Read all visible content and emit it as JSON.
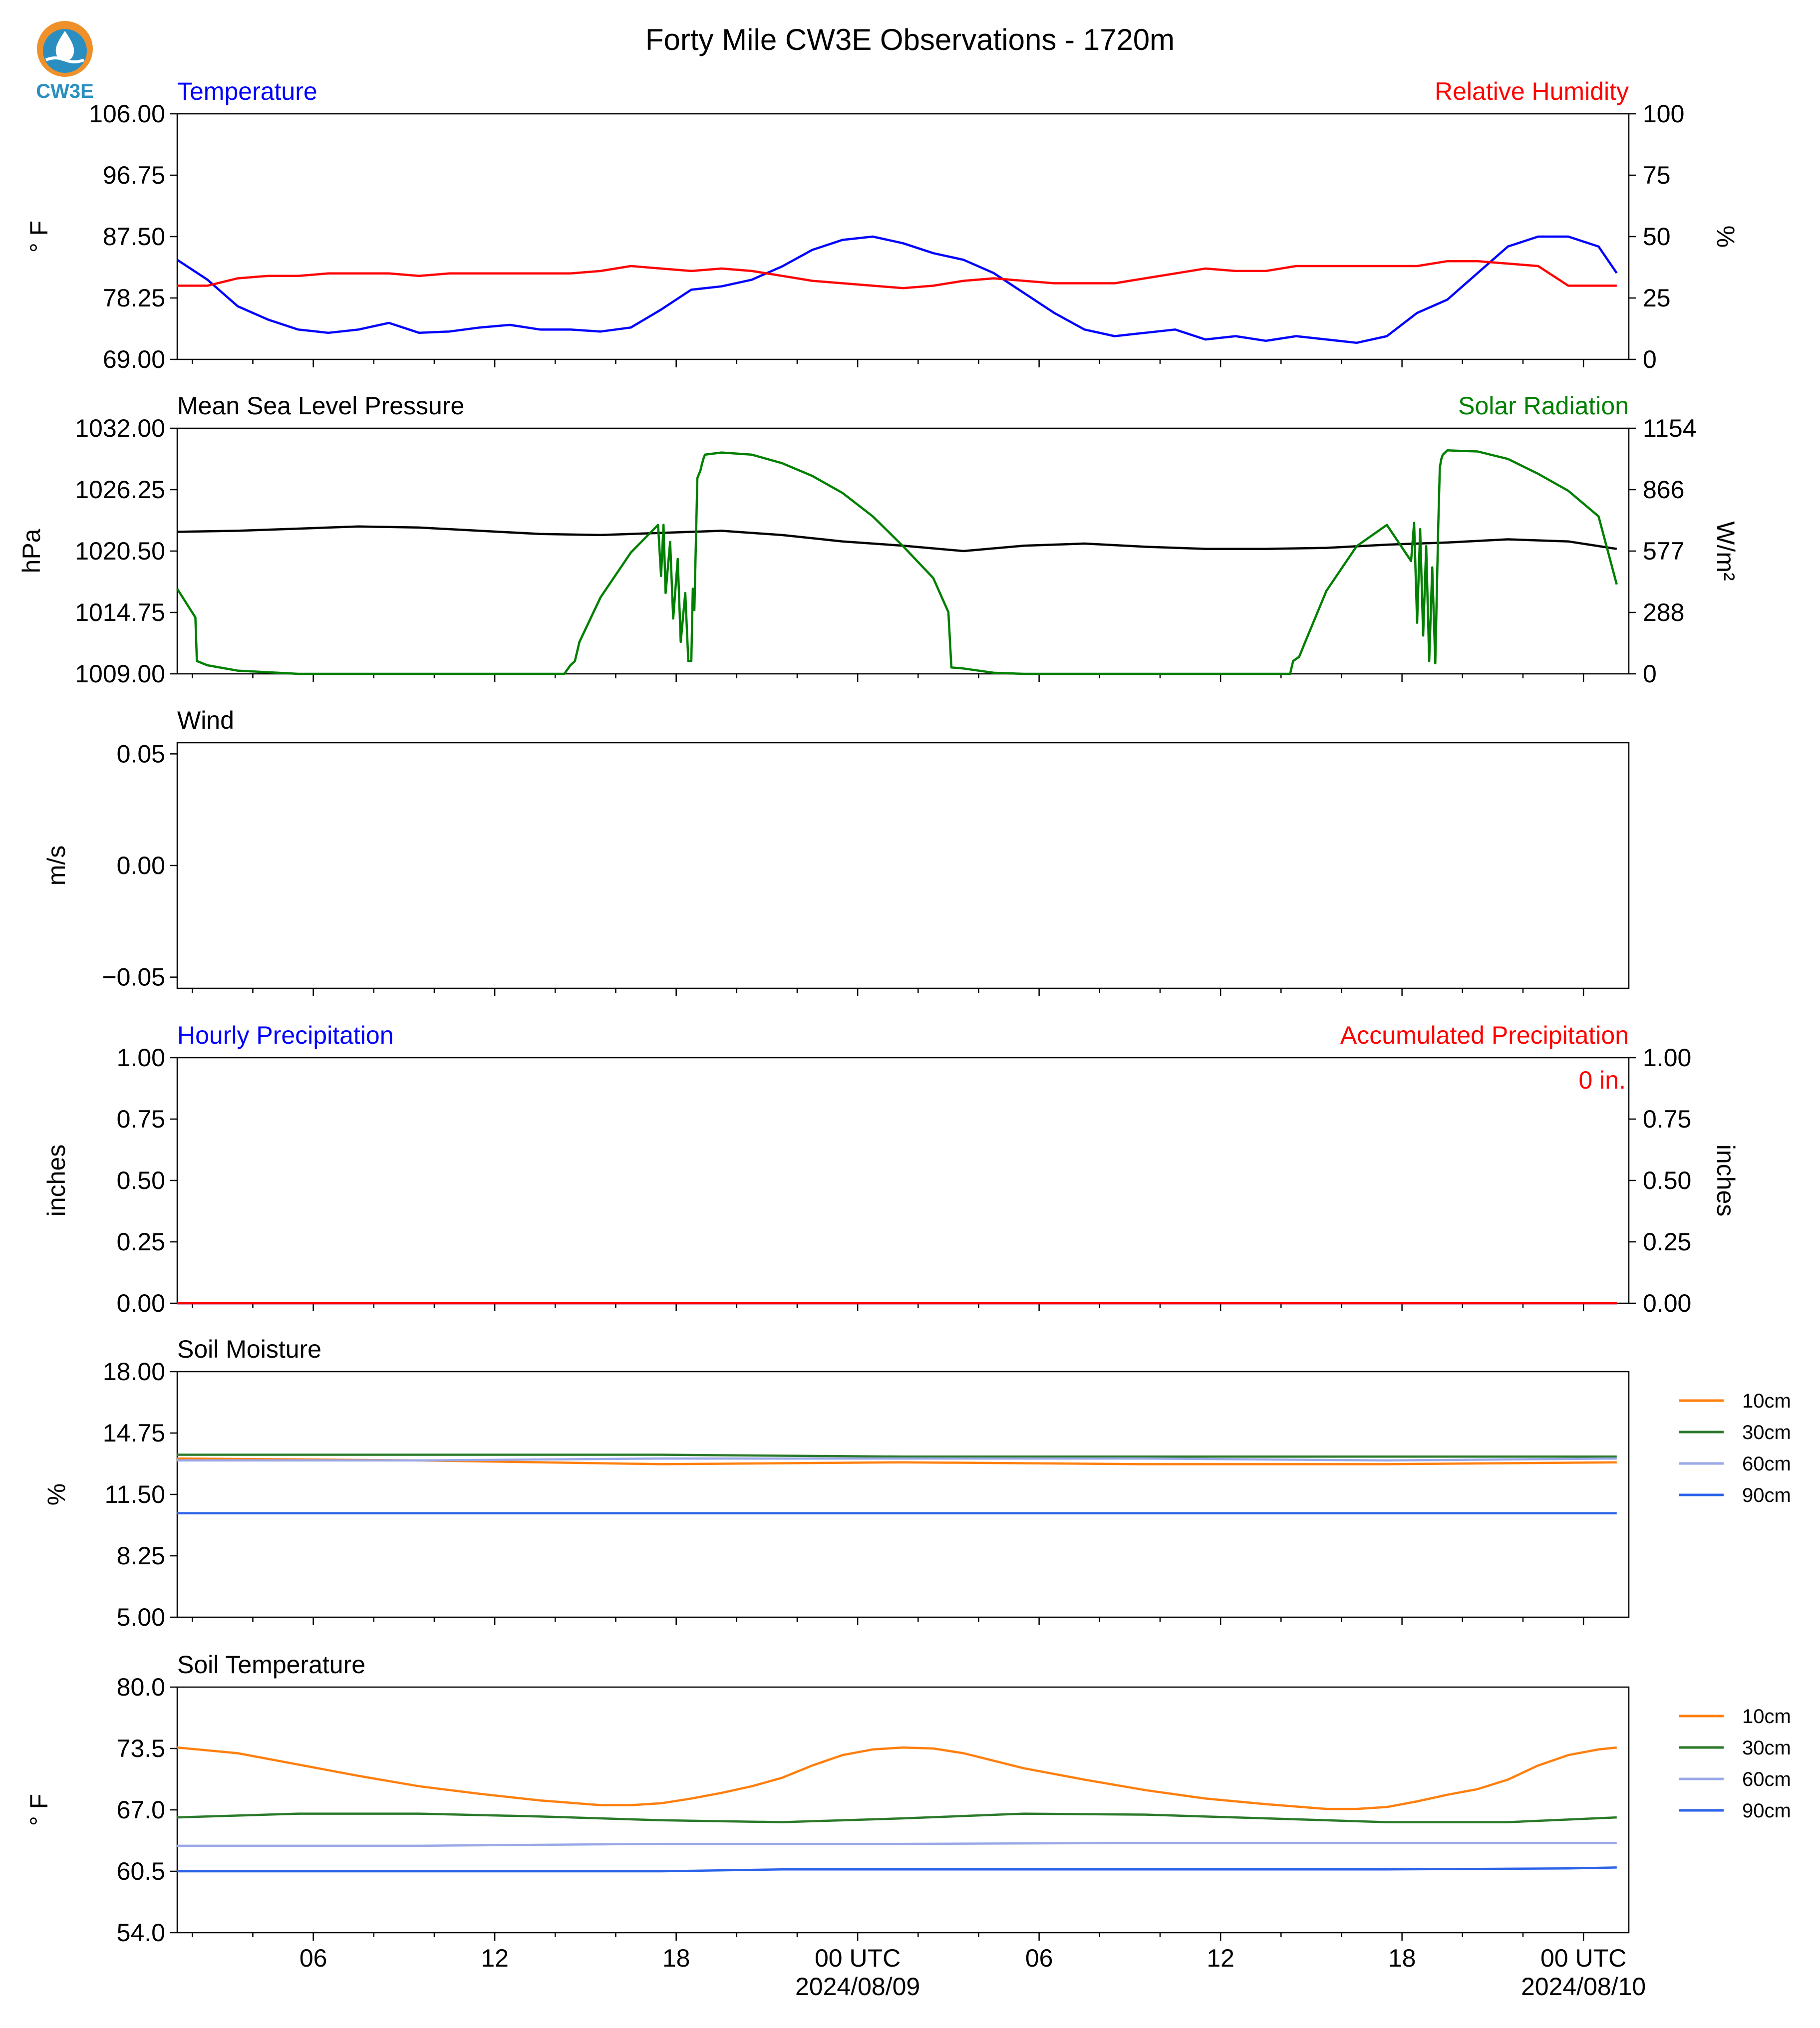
{
  "title": "Forty Mile CW3E Observations - 1720m",
  "logo": {
    "text": "CW3E",
    "icon": "water-drop-logo-icon",
    "colors": {
      "orange": "#f0902a",
      "blue": "#2a8fc0"
    }
  },
  "colors": {
    "blue": "#0000ff",
    "red": "#ff0000",
    "green": "#008000",
    "black": "#000000",
    "orange": "#ff7f0e",
    "dark_green": "#2a7a2a",
    "light_blue": "#9aa8e8",
    "mid_blue": "#2a62e8"
  },
  "chart_data": [
    {
      "panel": "temperature-humidity",
      "type": "line",
      "title_left": "Temperature",
      "title_right": "Relative Humidity",
      "ylabel": "° F",
      "ylabel_right": "%",
      "ylim": [
        69.0,
        106.0
      ],
      "ylim_right": [
        0,
        100
      ],
      "yticks": [
        "106.00",
        "96.75",
        "87.50",
        "78.25",
        "69.00"
      ],
      "yticks_right": [
        "100",
        "75",
        "50",
        "25",
        "0"
      ],
      "x_hours": [
        0,
        1,
        2,
        3,
        4,
        5,
        6,
        7,
        8,
        9,
        10,
        11,
        12,
        13,
        14,
        15,
        16,
        17,
        18,
        19,
        20,
        21,
        22,
        23,
        24,
        25,
        26,
        27,
        28,
        29,
        30,
        31,
        32,
        33,
        34,
        35,
        36,
        37,
        38,
        39,
        40,
        41,
        42,
        43,
        44,
        45,
        46,
        47,
        48
      ],
      "series": [
        {
          "name": "Temperature",
          "axis": "left",
          "color": "#0000ff",
          "values": [
            84.0,
            81.0,
            77.0,
            75.0,
            73.5,
            73.0,
            73.5,
            74.5,
            73.0,
            73.2,
            73.8,
            74.2,
            73.5,
            73.5,
            73.2,
            73.8,
            76.5,
            79.5,
            80.0,
            81.0,
            83.0,
            85.5,
            87.0,
            87.5,
            86.5,
            85.0,
            84.0,
            82.0,
            79.0,
            76.0,
            73.5,
            72.5,
            73.0,
            73.5,
            72.0,
            72.5,
            71.8,
            72.5,
            72.0,
            71.5,
            72.5,
            76.0,
            78.0,
            82.0,
            86.0,
            87.5,
            87.5,
            86.0,
            82.0
          ]
        },
        {
          "name": "Relative Humidity",
          "axis": "right",
          "color": "#ff0000",
          "values": [
            30,
            30,
            33,
            34,
            34,
            35,
            35,
            35,
            34,
            35,
            35,
            35,
            35,
            35,
            36,
            38,
            37,
            36,
            37,
            36,
            34,
            32,
            31,
            30,
            29,
            30,
            32,
            33,
            32,
            31,
            31,
            31,
            33,
            35,
            37,
            36,
            36,
            38,
            38,
            38,
            38,
            38,
            40,
            40,
            39,
            38,
            30,
            30,
            30
          ]
        }
      ]
    },
    {
      "panel": "pressure-solar",
      "type": "line",
      "title_left": "Mean Sea Level Pressure",
      "title_right": "Solar Radiation",
      "ylabel": "hPa",
      "ylabel_right": "W/m²",
      "ylim": [
        1009.0,
        1032.0
      ],
      "ylim_right": [
        0,
        1154
      ],
      "yticks": [
        "1032.00",
        "1026.25",
        "1020.50",
        "1014.75",
        "1009.00"
      ],
      "yticks_right": [
        "1154",
        "866",
        "577",
        "288",
        "0"
      ],
      "series": [
        {
          "name": "Mean Sea Level Pressure",
          "axis": "left",
          "color": "#000000",
          "x": [
            0,
            2,
            4,
            5,
            6,
            8,
            10,
            12,
            14,
            16,
            18,
            20,
            22,
            24,
            26,
            28,
            30,
            32,
            34,
            36,
            38,
            40,
            42,
            44,
            46,
            48
          ],
          "values": [
            1022.3,
            1022.4,
            1022.6,
            1022.7,
            1022.8,
            1022.7,
            1022.4,
            1022.1,
            1022.0,
            1022.2,
            1022.4,
            1022.0,
            1021.4,
            1021.0,
            1020.5,
            1021.0,
            1021.2,
            1020.9,
            1020.7,
            1020.7,
            1020.8,
            1021.1,
            1021.3,
            1021.6,
            1021.4,
            1020.7
          ]
        },
        {
          "name": "Solar Radiation",
          "axis": "right",
          "color": "#008000",
          "x": [
            0.0,
            0.6,
            0.65,
            1.0,
            2.0,
            4.0,
            8.0,
            12.0,
            12.8,
            13.0,
            13.15,
            13.3,
            14.0,
            15.0,
            15.9,
            16.0,
            16.08,
            16.15,
            16.3,
            16.4,
            16.55,
            16.65,
            16.8,
            16.9,
            17.0,
            17.05,
            17.1,
            17.2,
            17.3,
            17.35,
            17.4,
            17.45,
            18.0,
            19.0,
            20.0,
            21.0,
            22.0,
            23.0,
            24.0,
            25.0,
            25.5,
            25.6,
            26.0,
            27.0,
            28.0,
            30.0,
            34.0,
            36.0,
            36.8,
            36.9,
            37.1,
            37.3,
            38.0,
            39.0,
            40.0,
            40.8,
            40.9,
            41.0,
            41.1,
            41.2,
            41.3,
            41.4,
            41.5,
            41.6,
            41.7,
            41.75,
            41.8,
            41.85,
            42.0,
            43.0,
            44.0,
            45.0,
            46.0,
            47.0,
            48.0
          ],
          "values": [
            400,
            265,
            60,
            40,
            15,
            0,
            0,
            0,
            0,
            40,
            60,
            150,
            360,
            570,
            700,
            460,
            700,
            380,
            620,
            260,
            540,
            150,
            380,
            60,
            60,
            400,
            300,
            920,
            955,
            985,
            1010,
            1030,
            1040,
            1030,
            990,
            930,
            850,
            740,
            600,
            450,
            290,
            30,
            25,
            5,
            0,
            0,
            0,
            0,
            0,
            60,
            80,
            150,
            390,
            600,
            700,
            530,
            710,
            240,
            680,
            180,
            600,
            60,
            500,
            50,
            700,
            970,
            1010,
            1030,
            1050,
            1045,
            1010,
            940,
            860,
            740,
            420
          ]
        }
      ]
    },
    {
      "panel": "wind",
      "type": "line",
      "title_left": "Wind",
      "ylabel": "m/s",
      "ylim": [
        -0.055,
        0.055
      ],
      "yticks": [
        "0.05",
        "0.00",
        "−0.05"
      ],
      "series": []
    },
    {
      "panel": "precipitation",
      "type": "line",
      "title_left": "Hourly Precipitation",
      "title_right": "Accumulated Precipitation",
      "annotation": "0 in.",
      "ylabel": "inches",
      "ylabel_right": "inches",
      "ylim": [
        0,
        1
      ],
      "ylim_right": [
        0,
        1
      ],
      "yticks": [
        "1.00",
        "0.75",
        "0.50",
        "0.25",
        "0.00"
      ],
      "yticks_right": [
        "1.00",
        "0.75",
        "0.50",
        "0.25",
        "0.00"
      ],
      "series": [
        {
          "name": "Hourly Precipitation",
          "axis": "left",
          "color": "#0000ff",
          "x": [
            0,
            48
          ],
          "values": [
            0,
            0
          ]
        },
        {
          "name": "Accumulated Precipitation",
          "axis": "right",
          "color": "#ff0000",
          "x": [
            0,
            48
          ],
          "values": [
            0,
            0
          ]
        }
      ]
    },
    {
      "panel": "soil-moisture",
      "type": "line",
      "title_left": "Soil Moisture",
      "ylabel": "%",
      "ylim": [
        5.0,
        18.0
      ],
      "yticks": [
        "18.00",
        "14.75",
        "11.50",
        "8.25",
        "5.00"
      ],
      "legend_position": "right",
      "series": [
        {
          "name": "10cm",
          "color": "#ff7f0e",
          "x": [
            0,
            8,
            16,
            24,
            32,
            40,
            48
          ],
          "values": [
            13.4,
            13.3,
            13.1,
            13.2,
            13.1,
            13.1,
            13.2
          ]
        },
        {
          "name": "30cm",
          "color": "#2a7a2a",
          "x": [
            0,
            8,
            16,
            24,
            32,
            40,
            48
          ],
          "values": [
            13.6,
            13.6,
            13.6,
            13.5,
            13.5,
            13.5,
            13.5
          ]
        },
        {
          "name": "60cm",
          "color": "#9aa8e8",
          "x": [
            0,
            8,
            16,
            24,
            32,
            40,
            48
          ],
          "values": [
            13.3,
            13.3,
            13.4,
            13.4,
            13.4,
            13.3,
            13.4
          ]
        },
        {
          "name": "90cm",
          "color": "#2a62e8",
          "x": [
            0,
            8,
            16,
            24,
            32,
            40,
            48
          ],
          "values": [
            10.5,
            10.5,
            10.5,
            10.5,
            10.5,
            10.5,
            10.5
          ]
        }
      ]
    },
    {
      "panel": "soil-temperature",
      "type": "line",
      "title_left": "Soil Temperature",
      "ylabel": "° F",
      "ylim": [
        54.0,
        80.0
      ],
      "yticks": [
        "80.0",
        "73.5",
        "67.0",
        "60.5",
        "54.0"
      ],
      "legend_position": "right",
      "series": [
        {
          "name": "10cm",
          "color": "#ff7f0e",
          "x": [
            0,
            2,
            4,
            6,
            8,
            10,
            12,
            14,
            15,
            16,
            17,
            18,
            19,
            20,
            21,
            22,
            23,
            24,
            25,
            26,
            27,
            28,
            30,
            32,
            34,
            36,
            38,
            39,
            40,
            41,
            42,
            43,
            44,
            45,
            46,
            47,
            48
          ],
          "values": [
            73.6,
            73.0,
            71.8,
            70.6,
            69.5,
            68.7,
            68.0,
            67.5,
            67.5,
            67.7,
            68.2,
            68.8,
            69.5,
            70.4,
            71.7,
            72.8,
            73.4,
            73.6,
            73.5,
            73.0,
            72.2,
            71.4,
            70.2,
            69.1,
            68.2,
            67.6,
            67.1,
            67.1,
            67.3,
            67.9,
            68.6,
            69.2,
            70.2,
            71.7,
            72.8,
            73.4,
            73.6
          ]
        },
        {
          "name": "30cm",
          "color": "#2a7a2a",
          "x": [
            0,
            4,
            8,
            12,
            16,
            20,
            24,
            28,
            32,
            36,
            40,
            44,
            48
          ],
          "values": [
            66.2,
            66.6,
            66.6,
            66.3,
            65.9,
            65.7,
            66.1,
            66.6,
            66.5,
            66.1,
            65.7,
            65.7,
            66.2
          ]
        },
        {
          "name": "60cm",
          "color": "#9aa8e8",
          "x": [
            0,
            8,
            16,
            24,
            32,
            40,
            48
          ],
          "values": [
            63.2,
            63.2,
            63.4,
            63.4,
            63.5,
            63.5,
            63.5
          ]
        },
        {
          "name": "90cm",
          "color": "#2a62e8",
          "x": [
            0,
            8,
            16,
            18,
            20,
            24,
            32,
            40,
            46,
            48
          ],
          "values": [
            60.5,
            60.5,
            60.5,
            60.6,
            60.7,
            60.7,
            60.7,
            60.7,
            60.8,
            60.9
          ]
        }
      ]
    }
  ],
  "xaxis": {
    "range_hours": [
      0,
      48
    ],
    "tick_labels": [
      "06",
      "12",
      "18",
      "00 UTC",
      "06",
      "12",
      "18",
      "00 UTC"
    ],
    "date_labels": [
      "2024/08/09",
      "2024/08/10"
    ]
  }
}
